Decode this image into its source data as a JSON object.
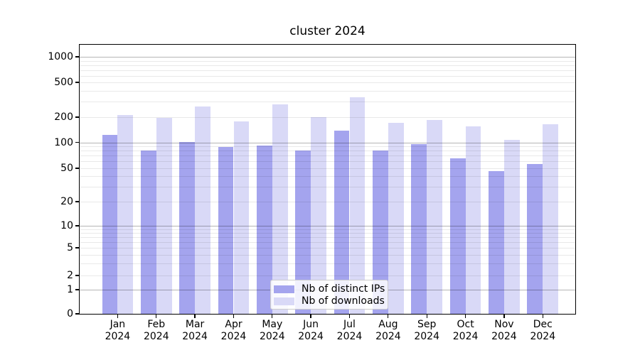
{
  "chart_data": {
    "type": "bar",
    "title": "cluster 2024",
    "categories": [
      "Jan",
      "Feb",
      "Mar",
      "Apr",
      "May",
      "Jun",
      "Jul",
      "Aug",
      "Sep",
      "Oct",
      "Nov",
      "Dec"
    ],
    "x_year_label": "2024",
    "series": [
      {
        "name": "Nb of distinct IPs",
        "color": "#a4a4ee",
        "values": [
          124,
          80,
          102,
          88,
          92,
          81,
          137,
          81,
          95,
          65,
          46,
          56
        ]
      },
      {
        "name": "Nb of downloads",
        "color": "#d9d9f7",
        "values": [
          213,
          195,
          265,
          178,
          280,
          200,
          335,
          170,
          185,
          155,
          107,
          165
        ]
      }
    ],
    "yticks": [
      0,
      1,
      2,
      5,
      10,
      20,
      50,
      100,
      200,
      500,
      1000
    ],
    "yscale": "symlog",
    "ylim": [
      0,
      1450
    ],
    "xlabel": "",
    "ylabel": "",
    "grid": true,
    "legend_position": "lower center"
  }
}
